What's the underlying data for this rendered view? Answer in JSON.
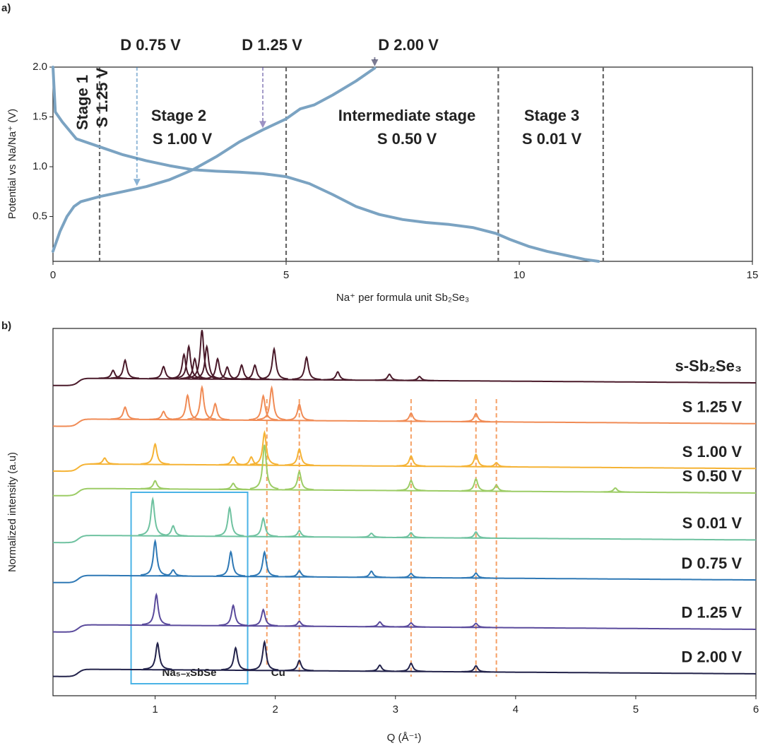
{
  "chart_data": [
    {
      "type": "line",
      "panel": "a)",
      "xlabel": "Na⁺ per formula unit Sb₂Se₃",
      "ylabel": "Potential vs Na/Na⁺ (V)",
      "xlim": [
        0,
        15
      ],
      "ylim": [
        0.05,
        2.0
      ],
      "xticks": [
        0,
        5,
        10,
        15
      ],
      "yticks": [
        0.5,
        {
          "value": 1,
          "label": "1.0"
        },
        1.5,
        {
          "value": 2,
          "label": "2.0"
        }
      ],
      "series": [
        {
          "color": "#7ba3c2",
          "x": [
            0,
            0.05,
            0.2,
            0.5,
            1,
            1.5,
            2,
            2.5,
            3,
            3.5,
            4,
            4.5,
            5,
            5.5,
            6,
            6.5,
            7,
            7.5,
            8,
            8.5,
            9,
            9.5,
            9.8,
            10.2,
            10.6,
            11,
            11.4,
            11.7
          ],
          "values": [
            2.0,
            1.55,
            1.45,
            1.28,
            1.2,
            1.12,
            1.06,
            1.01,
            0.97,
            0.955,
            0.945,
            0.93,
            0.9,
            0.83,
            0.72,
            0.6,
            0.52,
            0.47,
            0.44,
            0.42,
            0.39,
            0.33,
            0.27,
            0.2,
            0.15,
            0.11,
            0.07,
            0.05
          ]
        },
        {
          "color": "#7ba3c2",
          "x": [
            0,
            0.15,
            0.3,
            0.45,
            0.6,
            1,
            1.5,
            2,
            2.5,
            3,
            3.5,
            4,
            4.5,
            5,
            5.3,
            5.6,
            6,
            6.5,
            6.9
          ],
          "values": [
            0.15,
            0.35,
            0.5,
            0.6,
            0.65,
            0.7,
            0.75,
            0.8,
            0.87,
            0.97,
            1.1,
            1.25,
            1.37,
            1.48,
            1.58,
            1.62,
            1.72,
            1.86,
            1.99
          ]
        }
      ],
      "vlines": [
        1,
        5,
        9.55,
        11.8
      ],
      "arrows": [
        {
          "label": "D 0.75 V",
          "x": 1.8,
          "y": 0.8,
          "color": "#3a7fb8"
        },
        {
          "label": "D 1.25 V",
          "x": 4.5,
          "y": 1.38,
          "color": "#5a4a9c"
        },
        {
          "label": "D 2.00 V",
          "x": 6.9,
          "y": 2.0,
          "color": "#22224a"
        }
      ],
      "annotations": [
        {
          "text": "Stage 1",
          "color": "#c81fc8"
        },
        {
          "text": "S 1.25 V",
          "color": "#f08b55"
        },
        {
          "text": "Stage 2",
          "color": "#c81fc8"
        },
        {
          "text": "S 1.00 V",
          "color": "#f5b335"
        },
        {
          "text": "Intermediate stage",
          "color": "#c81fc8"
        },
        {
          "text": "S 0.50 V",
          "color": "#9ccc65"
        },
        {
          "text": "Stage 3",
          "color": "#c81fc8"
        },
        {
          "text": "S 0.01 V",
          "color": "#6fc2a0"
        }
      ]
    },
    {
      "type": "spectrum",
      "panel": "b)",
      "xlabel": "Q (Å⁻¹)",
      "ylabel": "Normalized intensity (a.u)",
      "xlim": [
        0.15,
        6
      ],
      "ylim": [
        0,
        9
      ],
      "xticks": [
        1,
        2,
        3,
        4,
        5,
        6
      ],
      "series": [
        {
          "name": "s-Sb₂Se₃",
          "color": "#4a1a2a",
          "peaks": [
            0.65,
            0.75,
            1.07,
            1.24,
            1.28,
            1.33,
            1.39,
            1.43,
            1.52,
            1.6,
            1.72,
            1.83,
            1.99,
            2.26,
            2.52,
            2.95,
            3.2
          ],
          "values": [
            0.2,
            0.45,
            0.3,
            0.6,
            0.8,
            0.5,
            1.2,
            0.8,
            0.5,
            0.3,
            0.35,
            0.35,
            0.75,
            0.55,
            0.2,
            0.15,
            0.1
          ]
        },
        {
          "name": "S 1.25 V",
          "color": "#f08b55",
          "peaks": [
            0.75,
            1.07,
            1.27,
            1.39,
            1.5,
            1.9,
            1.97,
            2.2,
            3.13,
            3.67
          ],
          "values": [
            0.3,
            0.2,
            0.6,
            0.8,
            0.4,
            0.6,
            0.8,
            0.4,
            0.2,
            0.2
          ]
        },
        {
          "name": "S 1.00 V",
          "color": "#f5b335",
          "peaks": [
            0.58,
            1.0,
            1.65,
            1.8,
            1.91,
            2.2,
            3.13,
            3.67,
            3.84
          ],
          "values": [
            0.15,
            0.5,
            0.2,
            0.2,
            0.8,
            0.4,
            0.25,
            0.3,
            0.1
          ]
        },
        {
          "name": "S 0.50 V",
          "color": "#9ccc65",
          "peaks": [
            1.0,
            1.65,
            1.91,
            2.2,
            3.13,
            3.67,
            3.84,
            4.83
          ],
          "values": [
            0.2,
            0.15,
            1.1,
            0.45,
            0.25,
            0.3,
            0.15,
            0.1
          ]
        },
        {
          "name": "S 0.01 V",
          "color": "#6fc2a0",
          "peaks": [
            0.98,
            1.15,
            1.62,
            1.9,
            2.2,
            2.8,
            3.13,
            3.67
          ],
          "values": [
            0.9,
            0.25,
            0.7,
            0.45,
            0.15,
            0.1,
            0.12,
            0.15
          ]
        },
        {
          "name": "D 0.75 V",
          "color": "#2e78b5",
          "peaks": [
            1.0,
            1.15,
            1.63,
            1.91,
            2.2,
            2.8,
            3.13,
            3.67
          ],
          "values": [
            0.85,
            0.15,
            0.6,
            0.6,
            0.15,
            0.15,
            0.1,
            0.12
          ]
        },
        {
          "name": "D 1.25 V",
          "color": "#5a4a9c",
          "peaks": [
            1.01,
            1.65,
            1.9,
            2.2,
            2.87,
            3.13,
            3.67
          ],
          "values": [
            0.75,
            0.5,
            0.4,
            0.12,
            0.12,
            0.1,
            0.1
          ]
        },
        {
          "name": "D 2.00 V",
          "color": "#22224a",
          "peaks": [
            1.02,
            1.67,
            1.91,
            2.2,
            2.87,
            3.13,
            3.67
          ],
          "values": [
            0.65,
            0.55,
            0.7,
            0.25,
            0.15,
            0.2,
            0.15
          ]
        }
      ],
      "vlines": [
        1.93,
        2.2,
        3.13,
        3.67,
        3.84
      ],
      "vline_color": "#f5a066",
      "vline_label": "Cu",
      "box": {
        "label": "Na₅₋ₓSbSe",
        "range": [
          0.8,
          1.77
        ],
        "color": "#4ab3e6"
      }
    }
  ]
}
